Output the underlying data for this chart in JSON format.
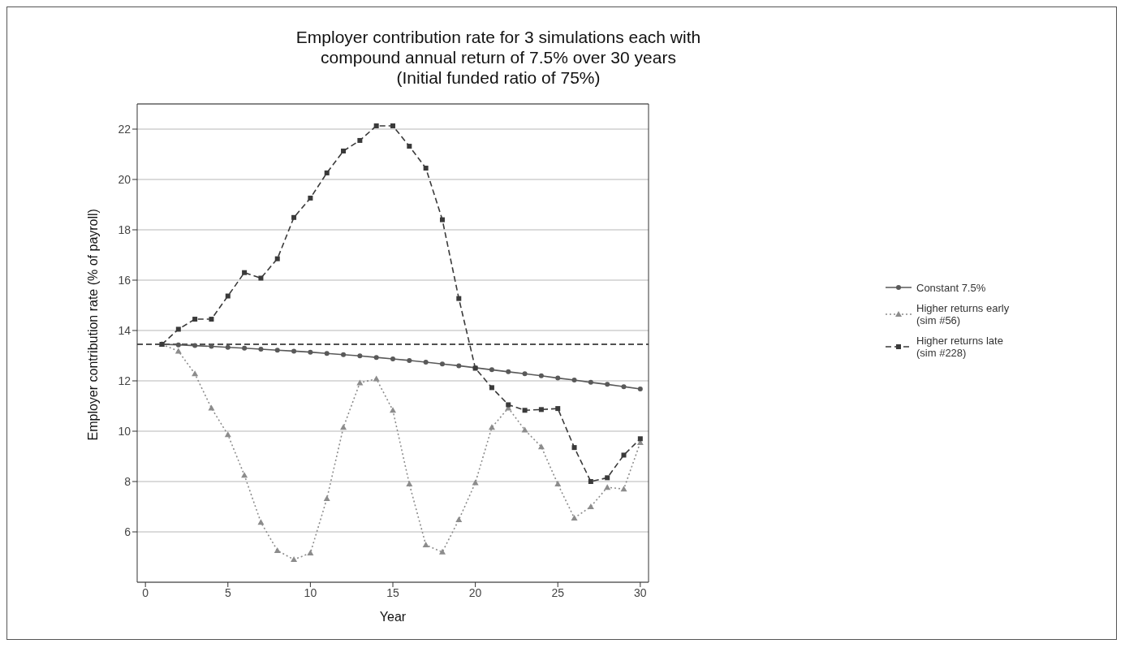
{
  "chart_data": {
    "type": "line",
    "title": "Employer contribution rate for 3 simulations each with\ncompound annual return of 7.5% over 30 years\n(Initial funded ratio of 75%)",
    "xlabel": "Year",
    "ylabel": "Employer contribution rate (% of payroll)",
    "x": [
      1,
      2,
      3,
      4,
      5,
      6,
      7,
      8,
      9,
      10,
      11,
      12,
      13,
      14,
      15,
      16,
      17,
      18,
      19,
      20,
      21,
      22,
      23,
      24,
      25,
      26,
      27,
      28,
      29,
      30
    ],
    "series": [
      {
        "name": "Constant 7.5%",
        "color": "#595959",
        "marker": "circle",
        "line_style": "solid",
        "values": [
          13.45,
          13.43,
          13.4,
          13.37,
          13.33,
          13.3,
          13.26,
          13.22,
          13.18,
          13.14,
          13.09,
          13.04,
          12.99,
          12.93,
          12.87,
          12.81,
          12.74,
          12.67,
          12.6,
          12.52,
          12.44,
          12.36,
          12.28,
          12.2,
          12.11,
          12.03,
          11.94,
          11.86,
          11.77,
          11.68
        ]
      },
      {
        "name": "Higher returns early\n(sim #56)",
        "color": "#8c8c8c",
        "marker": "triangle",
        "line_style": "dotted",
        "values": [
          13.45,
          13.18,
          12.28,
          10.92,
          9.86,
          8.25,
          6.38,
          5.26,
          4.9,
          5.16,
          7.32,
          10.15,
          11.92,
          12.08,
          10.83,
          7.9,
          5.48,
          5.2,
          6.48,
          7.95,
          10.15,
          10.92,
          10.05,
          9.38,
          7.9,
          6.55,
          7.0,
          7.77,
          7.7,
          9.55
        ]
      },
      {
        "name": "Higher returns late\n(sim #228)",
        "color": "#3a3a3a",
        "marker": "square",
        "line_style": "dashed",
        "values": [
          13.45,
          14.05,
          14.45,
          14.45,
          15.37,
          16.3,
          16.08,
          16.85,
          18.49,
          19.26,
          20.26,
          21.13,
          21.55,
          22.13,
          22.13,
          21.32,
          20.45,
          18.4,
          15.27,
          12.5,
          11.73,
          11.05,
          10.83,
          10.86,
          10.9,
          9.35,
          8.0,
          8.15,
          9.05,
          9.7
        ]
      }
    ],
    "xlim": [
      -0.5,
      30.5
    ],
    "xticks": [
      0,
      5,
      10,
      15,
      20,
      25,
      30
    ],
    "ylim": [
      4,
      23
    ],
    "yticks": [
      6,
      8,
      10,
      12,
      14,
      16,
      18,
      20,
      22
    ],
    "ref_lines": [
      {
        "axis": "y",
        "value": 13.45,
        "color": "#1a1a1a",
        "line_style": "dashed"
      }
    ],
    "grid": "y",
    "legend": "right"
  }
}
